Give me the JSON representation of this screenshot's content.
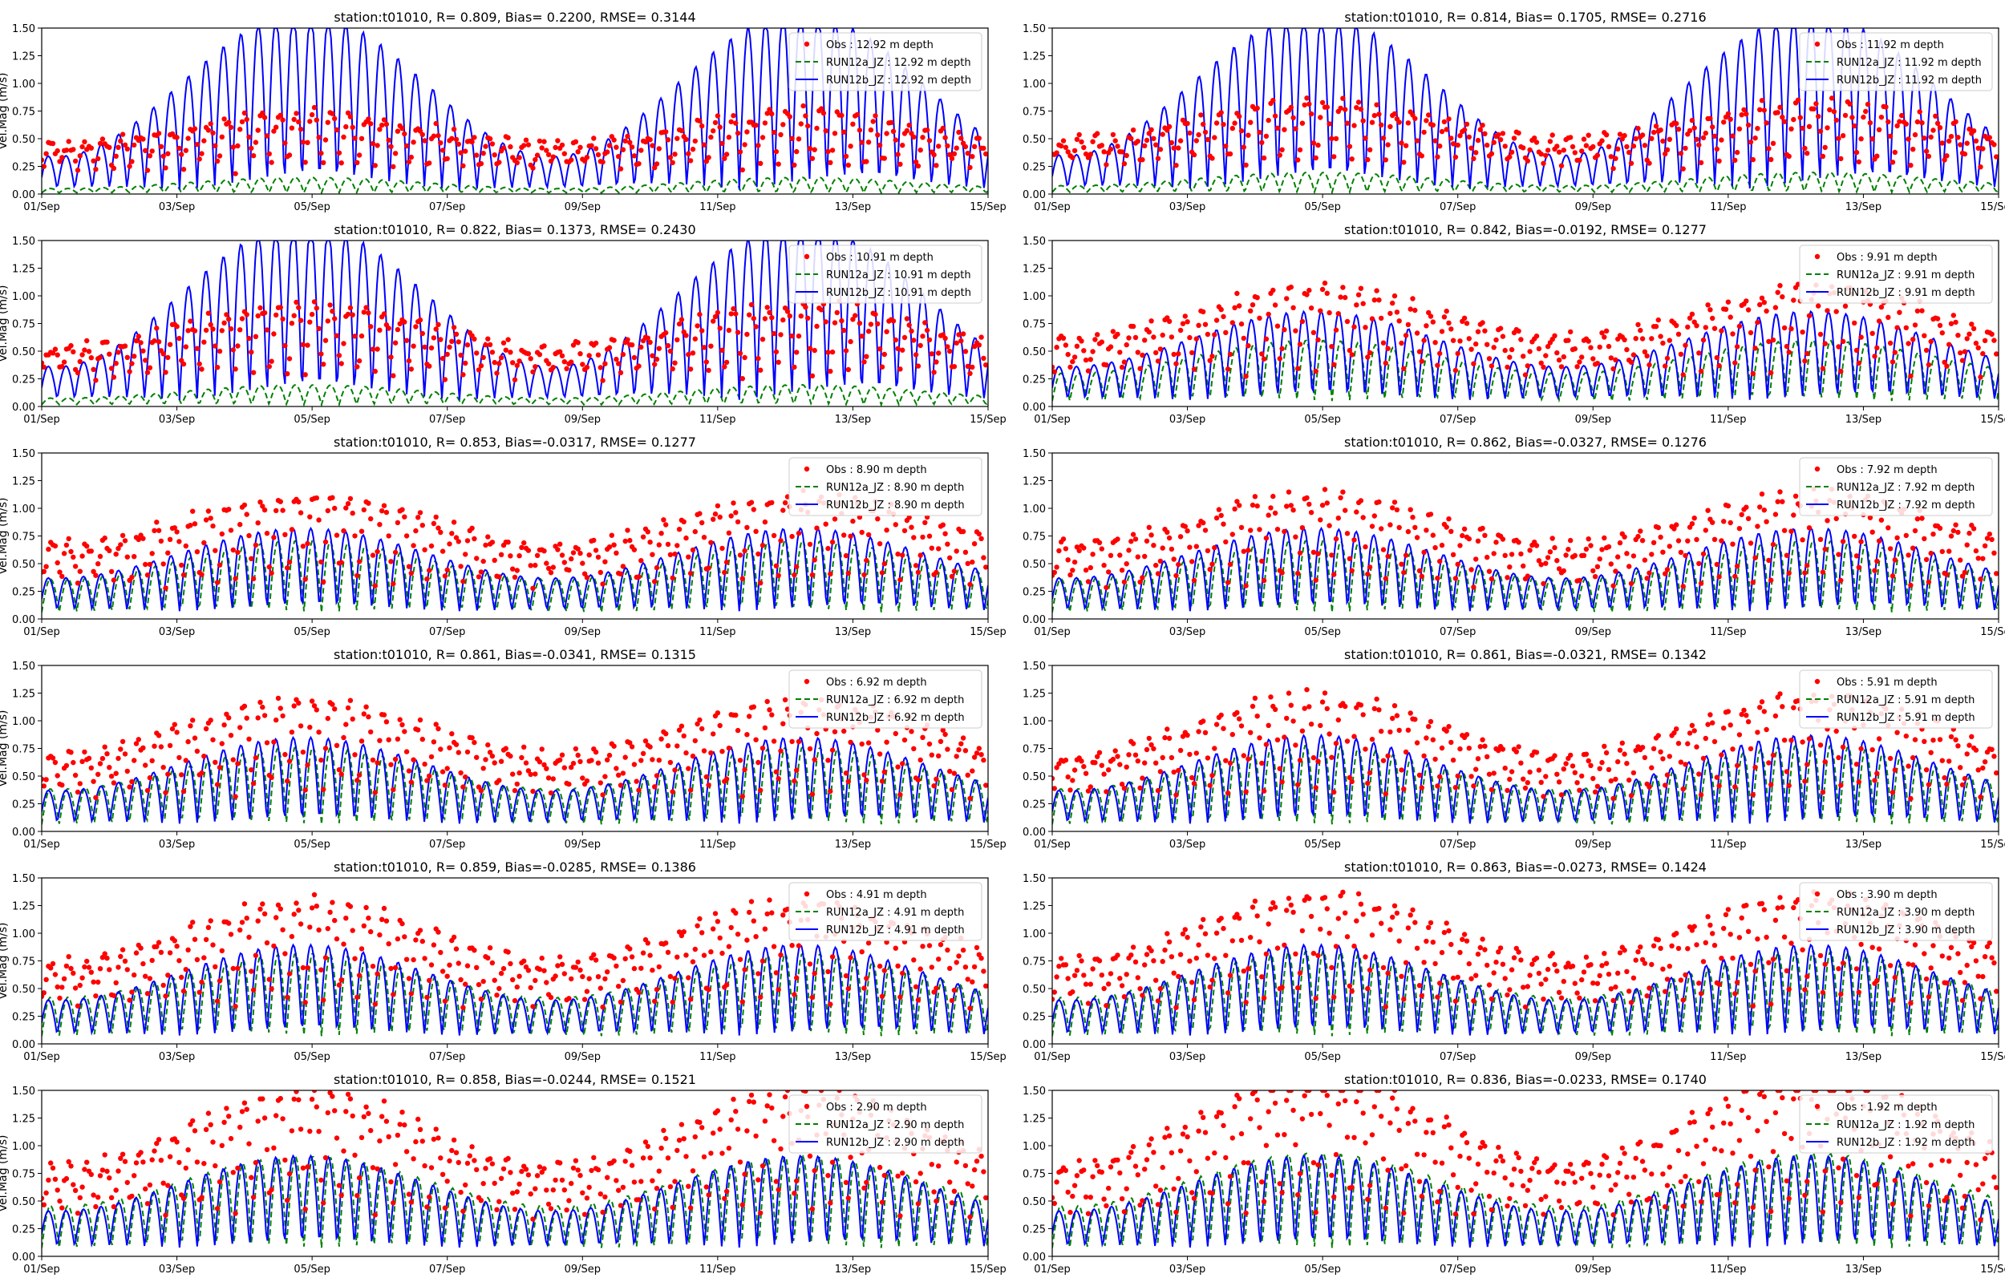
{
  "figure": {
    "layout": "6 rows x 2 columns of time-series panels",
    "colors": {
      "obs": "#ff0000",
      "run12a": "#008000",
      "run12b": "#0000ff",
      "axes": "#000000"
    }
  },
  "chart_data": [
    {
      "type": "line",
      "title": "station:t01010, R= 0.809, Bias= 0.2200, RMSE= 0.3144",
      "xlabel": "",
      "ylabel": "Vel.Mag (m/s)",
      "ylim": [
        0,
        1.5
      ],
      "yticks": [
        "0.00",
        "0.25",
        "0.50",
        "0.75",
        "1.00",
        "1.25",
        "1.50"
      ],
      "xlim_days": [
        0,
        14
      ],
      "xticks": [
        "01/Sep",
        "03/Sep",
        "05/Sep",
        "07/Sep",
        "09/Sep",
        "11/Sep",
        "13/Sep",
        "15/Sep"
      ],
      "legend_position": "top-right",
      "series": [
        {
          "name": "Obs : 12.92 m depth",
          "style": "markers",
          "color": "#ff0000",
          "base": 0.3,
          "amp": 0.2,
          "peak": 0.3
        },
        {
          "name": "RUN12a_JZ : 12.92 m depth",
          "style": "dashed",
          "color": "#008000",
          "base": 0.05,
          "amp": 0.04,
          "peak": 0.1
        },
        {
          "name": "RUN12b_JZ : 12.92 m depth",
          "style": "solid",
          "color": "#0000ff",
          "base": 0.2,
          "amp": 0.3,
          "peak": 1.3
        }
      ],
      "legend_entries": [
        "Obs : 12.92 m depth",
        "RUN12a_JZ : 12.92 m depth",
        "RUN12b_JZ : 12.92 m depth"
      ]
    },
    {
      "type": "line",
      "title": "station:t01010, R= 0.814, Bias= 0.1705, RMSE= 0.2716",
      "xlabel": "",
      "ylabel": "",
      "ylim": [
        0,
        1.5
      ],
      "yticks": [
        "0.00",
        "0.25",
        "0.50",
        "0.75",
        "1.00",
        "1.25",
        "1.50"
      ],
      "xlim_days": [
        0,
        14
      ],
      "xticks": [
        "01/Sep",
        "03/Sep",
        "05/Sep",
        "07/Sep",
        "09/Sep",
        "11/Sep",
        "13/Sep",
        "15/Sep"
      ],
      "legend_position": "top-right",
      "series": [
        {
          "name": "Obs : 11.92 m depth",
          "style": "markers",
          "color": "#ff0000",
          "base": 0.35,
          "amp": 0.2,
          "peak": 0.35
        },
        {
          "name": "RUN12a_JZ : 11.92 m depth",
          "style": "dashed",
          "color": "#008000",
          "base": 0.08,
          "amp": 0.06,
          "peak": 0.12
        },
        {
          "name": "RUN12b_JZ : 11.92 m depth",
          "style": "solid",
          "color": "#0000ff",
          "base": 0.25,
          "amp": 0.3,
          "peak": 1.28
        }
      ],
      "legend_entries": [
        "Obs : 11.92 m depth",
        "RUN12a_JZ : 11.92 m depth",
        "RUN12b_JZ : 11.92 m depth"
      ]
    },
    {
      "type": "line",
      "title": "station:t01010, R= 0.822, Bias= 0.1373, RMSE= 0.2430",
      "xlabel": "",
      "ylabel": "Vel.Mag (m/s)",
      "ylim": [
        0,
        1.5
      ],
      "yticks": [
        "0.00",
        "0.25",
        "0.50",
        "0.75",
        "1.00",
        "1.25",
        "1.50"
      ],
      "xlim_days": [
        0,
        14
      ],
      "xticks": [
        "01/Sep",
        "03/Sep",
        "05/Sep",
        "07/Sep",
        "09/Sep",
        "11/Sep",
        "13/Sep",
        "15/Sep"
      ],
      "legend_position": "top-right",
      "series": [
        {
          "name": "Obs : 10.91 m depth",
          "style": "markers",
          "color": "#ff0000",
          "base": 0.35,
          "amp": 0.25,
          "peak": 0.4
        },
        {
          "name": "RUN12a_JZ : 10.91 m depth",
          "style": "dashed",
          "color": "#008000",
          "base": 0.08,
          "amp": 0.06,
          "peak": 0.12
        },
        {
          "name": "RUN12b_JZ : 10.91 m depth",
          "style": "solid",
          "color": "#0000ff",
          "base": 0.3,
          "amp": 0.3,
          "peak": 1.3
        }
      ],
      "legend_entries": [
        "Obs : 10.91 m depth",
        "RUN12a_JZ : 10.91 m depth",
        "RUN12b_JZ : 10.91 m depth"
      ]
    },
    {
      "type": "line",
      "title": "station:t01010, R= 0.842, Bias=-0.0192, RMSE= 0.1277",
      "xlabel": "",
      "ylabel": "",
      "ylim": [
        0,
        1.5
      ],
      "yticks": [
        "0.00",
        "0.25",
        "0.50",
        "0.75",
        "1.00",
        "1.25",
        "1.50"
      ],
      "xlim_days": [
        0,
        14
      ],
      "xticks": [
        "01/Sep",
        "03/Sep",
        "05/Sep",
        "07/Sep",
        "09/Sep",
        "11/Sep",
        "13/Sep",
        "15/Sep"
      ],
      "legend_position": "top-right",
      "series": [
        {
          "name": "Obs : 9.91 m depth",
          "style": "markers",
          "color": "#ff0000",
          "base": 0.4,
          "amp": 0.3,
          "peak": 0.45
        },
        {
          "name": "RUN12a_JZ : 9.91 m depth",
          "style": "dashed",
          "color": "#008000",
          "base": 0.25,
          "amp": 0.25,
          "peak": 0.3
        },
        {
          "name": "RUN12b_JZ : 9.91 m depth",
          "style": "solid",
          "color": "#0000ff",
          "base": 0.3,
          "amp": 0.3,
          "peak": 0.5
        }
      ],
      "legend_entries": [
        "Obs : 9.91 m depth",
        "RUN12a_JZ : 9.91 m depth",
        "RUN12b_JZ : 9.91 m depth"
      ]
    },
    {
      "type": "line",
      "title": "station:t01010, R= 0.853, Bias=-0.0317, RMSE= 0.1277",
      "xlabel": "",
      "ylabel": "Vel.Mag (m/s)",
      "ylim": [
        0,
        1.5
      ],
      "yticks": [
        "0.00",
        "0.25",
        "0.50",
        "0.75",
        "1.00",
        "1.25",
        "1.50"
      ],
      "xlim_days": [
        0,
        14
      ],
      "xticks": [
        "01/Sep",
        "03/Sep",
        "05/Sep",
        "07/Sep",
        "09/Sep",
        "11/Sep",
        "13/Sep",
        "15/Sep"
      ],
      "legend_position": "top-right",
      "series": [
        {
          "name": "Obs : 8.90 m depth",
          "style": "markers",
          "color": "#ff0000",
          "base": 0.4,
          "amp": 0.35,
          "peak": 0.45
        },
        {
          "name": "RUN12a_JZ : 8.90 m depth",
          "style": "dashed",
          "color": "#008000",
          "base": 0.3,
          "amp": 0.3,
          "peak": 0.35
        },
        {
          "name": "RUN12b_JZ : 8.90 m depth",
          "style": "solid",
          "color": "#0000ff",
          "base": 0.35,
          "amp": 0.3,
          "peak": 0.45
        }
      ],
      "legend_entries": [
        "Obs : 8.90 m depth",
        "RUN12a_JZ : 8.90 m depth",
        "RUN12b_JZ : 8.90 m depth"
      ]
    },
    {
      "type": "line",
      "title": "station:t01010, R= 0.862, Bias=-0.0327, RMSE= 0.1276",
      "xlabel": "",
      "ylabel": "",
      "ylim": [
        0,
        1.5
      ],
      "yticks": [
        "0.00",
        "0.25",
        "0.50",
        "0.75",
        "1.00",
        "1.25",
        "1.50"
      ],
      "xlim_days": [
        0,
        14
      ],
      "xticks": [
        "01/Sep",
        "03/Sep",
        "05/Sep",
        "07/Sep",
        "09/Sep",
        "11/Sep",
        "13/Sep",
        "15/Sep"
      ],
      "legend_position": "top-right",
      "series": [
        {
          "name": "Obs : 7.92 m depth",
          "style": "markers",
          "color": "#ff0000",
          "base": 0.4,
          "amp": 0.35,
          "peak": 0.45
        },
        {
          "name": "RUN12a_JZ : 7.92 m depth",
          "style": "dashed",
          "color": "#008000",
          "base": 0.3,
          "amp": 0.3,
          "peak": 0.35
        },
        {
          "name": "RUN12b_JZ : 7.92 m depth",
          "style": "solid",
          "color": "#0000ff",
          "base": 0.35,
          "amp": 0.3,
          "peak": 0.45
        }
      ],
      "legend_entries": [
        "Obs : 7.92 m depth",
        "RUN12a_JZ : 7.92 m depth",
        "RUN12b_JZ : 7.92 m depth"
      ]
    },
    {
      "type": "line",
      "title": "station:t01010, R= 0.861, Bias=-0.0341, RMSE= 0.1315",
      "xlabel": "",
      "ylabel": "Vel.Mag (m/s)",
      "ylim": [
        0,
        1.5
      ],
      "yticks": [
        "0.00",
        "0.25",
        "0.50",
        "0.75",
        "1.00",
        "1.25",
        "1.50"
      ],
      "xlim_days": [
        0,
        14
      ],
      "xticks": [
        "01/Sep",
        "03/Sep",
        "05/Sep",
        "07/Sep",
        "09/Sep",
        "11/Sep",
        "13/Sep",
        "15/Sep"
      ],
      "legend_position": "top-right",
      "series": [
        {
          "name": "Obs : 6.92 m depth",
          "style": "markers",
          "color": "#ff0000",
          "base": 0.42,
          "amp": 0.35,
          "peak": 0.5
        },
        {
          "name": "RUN12a_JZ : 6.92 m depth",
          "style": "dashed",
          "color": "#008000",
          "base": 0.32,
          "amp": 0.32,
          "peak": 0.38
        },
        {
          "name": "RUN12b_JZ : 6.92 m depth",
          "style": "solid",
          "color": "#0000ff",
          "base": 0.35,
          "amp": 0.3,
          "peak": 0.48
        }
      ],
      "legend_entries": [
        "Obs : 6.92 m depth",
        "RUN12a_JZ : 6.92 m depth",
        "RUN12b_JZ : 6.92 m depth"
      ]
    },
    {
      "type": "line",
      "title": "station:t01010, R= 0.861, Bias=-0.0321, RMSE= 0.1342",
      "xlabel": "",
      "ylabel": "",
      "ylim": [
        0,
        1.5
      ],
      "yticks": [
        "0.00",
        "0.25",
        "0.50",
        "0.75",
        "1.00",
        "1.25",
        "1.50"
      ],
      "xlim_days": [
        0,
        14
      ],
      "xticks": [
        "01/Sep",
        "03/Sep",
        "05/Sep",
        "07/Sep",
        "09/Sep",
        "11/Sep",
        "13/Sep",
        "15/Sep"
      ],
      "legend_position": "top-right",
      "series": [
        {
          "name": "Obs : 5.91 m depth",
          "style": "markers",
          "color": "#ff0000",
          "base": 0.42,
          "amp": 0.35,
          "peak": 0.55
        },
        {
          "name": "RUN12a_JZ : 5.91 m depth",
          "style": "dashed",
          "color": "#008000",
          "base": 0.32,
          "amp": 0.32,
          "peak": 0.4
        },
        {
          "name": "RUN12b_JZ : 5.91 m depth",
          "style": "solid",
          "color": "#0000ff",
          "base": 0.35,
          "amp": 0.3,
          "peak": 0.5
        }
      ],
      "legend_entries": [
        "Obs : 5.91 m depth",
        "RUN12a_JZ : 5.91 m depth",
        "RUN12b_JZ : 5.91 m depth"
      ]
    },
    {
      "type": "line",
      "title": "station:t01010, R= 0.859, Bias=-0.0285, RMSE= 0.1386",
      "xlabel": "",
      "ylabel": "Vel.Mag (m/s)",
      "ylim": [
        0,
        1.5
      ],
      "yticks": [
        "0.00",
        "0.25",
        "0.50",
        "0.75",
        "1.00",
        "1.25",
        "1.50"
      ],
      "xlim_days": [
        0,
        14
      ],
      "xticks": [
        "01/Sep",
        "03/Sep",
        "05/Sep",
        "07/Sep",
        "09/Sep",
        "11/Sep",
        "13/Sep",
        "15/Sep"
      ],
      "legend_position": "top-right",
      "series": [
        {
          "name": "Obs : 4.91 m depth",
          "style": "markers",
          "color": "#ff0000",
          "base": 0.45,
          "amp": 0.38,
          "peak": 0.55
        },
        {
          "name": "RUN12a_JZ : 4.91 m depth",
          "style": "dashed",
          "color": "#008000",
          "base": 0.35,
          "amp": 0.35,
          "peak": 0.4
        },
        {
          "name": "RUN12b_JZ : 4.91 m depth",
          "style": "solid",
          "color": "#0000ff",
          "base": 0.38,
          "amp": 0.32,
          "peak": 0.5
        }
      ],
      "legend_entries": [
        "Obs : 4.91 m depth",
        "RUN12a_JZ : 4.91 m depth",
        "RUN12b_JZ : 4.91 m depth"
      ]
    },
    {
      "type": "line",
      "title": "station:t01010, R= 0.863, Bias=-0.0273, RMSE= 0.1424",
      "xlabel": "",
      "ylabel": "",
      "ylim": [
        0,
        1.5
      ],
      "yticks": [
        "0.00",
        "0.25",
        "0.50",
        "0.75",
        "1.00",
        "1.25",
        "1.50"
      ],
      "xlim_days": [
        0,
        14
      ],
      "xticks": [
        "01/Sep",
        "03/Sep",
        "05/Sep",
        "07/Sep",
        "09/Sep",
        "11/Sep",
        "13/Sep",
        "15/Sep"
      ],
      "legend_position": "top-right",
      "series": [
        {
          "name": "Obs : 3.90 m depth",
          "style": "markers",
          "color": "#ff0000",
          "base": 0.45,
          "amp": 0.4,
          "peak": 0.6
        },
        {
          "name": "RUN12a_JZ : 3.90 m depth",
          "style": "dashed",
          "color": "#008000",
          "base": 0.35,
          "amp": 0.35,
          "peak": 0.42
        },
        {
          "name": "RUN12b_JZ : 3.90 m depth",
          "style": "solid",
          "color": "#0000ff",
          "base": 0.38,
          "amp": 0.32,
          "peak": 0.5
        }
      ],
      "legend_entries": [
        "Obs : 3.90 m depth",
        "RUN12a_JZ : 3.90 m depth",
        "RUN12b_JZ : 3.90 m depth"
      ]
    },
    {
      "type": "line",
      "title": "station:t01010, R= 0.858, Bias=-0.0244, RMSE= 0.1521",
      "xlabel": "",
      "ylabel": "Vel.Mag (m/s)",
      "ylim": [
        0,
        1.5
      ],
      "yticks": [
        "0.00",
        "0.25",
        "0.50",
        "0.75",
        "1.00",
        "1.25",
        "1.50"
      ],
      "xlim_days": [
        0,
        14
      ],
      "xticks": [
        "01/Sep",
        "03/Sep",
        "05/Sep",
        "07/Sep",
        "09/Sep",
        "11/Sep",
        "13/Sep",
        "15/Sep"
      ],
      "legend_position": "top-right",
      "series": [
        {
          "name": "Obs : 2.90 m depth",
          "style": "markers",
          "color": "#ff0000",
          "base": 0.48,
          "amp": 0.42,
          "peak": 0.7
        },
        {
          "name": "RUN12a_JZ : 2.90 m depth",
          "style": "dashed",
          "color": "#008000",
          "base": 0.38,
          "amp": 0.38,
          "peak": 0.45
        },
        {
          "name": "RUN12b_JZ : 2.90 m depth",
          "style": "solid",
          "color": "#0000ff",
          "base": 0.4,
          "amp": 0.33,
          "peak": 0.5
        }
      ],
      "legend_entries": [
        "Obs : 2.90 m depth",
        "RUN12a_JZ : 2.90 m depth",
        "RUN12b_JZ : 2.90 m depth"
      ]
    },
    {
      "type": "line",
      "title": "station:t01010, R= 0.836, Bias=-0.0233, RMSE= 0.1740",
      "xlabel": "",
      "ylabel": "",
      "ylim": [
        0,
        1.5
      ],
      "yticks": [
        "0.00",
        "0.25",
        "0.50",
        "0.75",
        "1.00",
        "1.25",
        "1.50"
      ],
      "xlim_days": [
        0,
        14
      ],
      "xticks": [
        "01/Sep",
        "03/Sep",
        "05/Sep",
        "07/Sep",
        "09/Sep",
        "11/Sep",
        "13/Sep",
        "15/Sep"
      ],
      "legend_position": "top-right",
      "series": [
        {
          "name": "Obs : 1.92 m depth",
          "style": "markers",
          "color": "#ff0000",
          "base": 0.48,
          "amp": 0.45,
          "peak": 0.8
        },
        {
          "name": "RUN12a_JZ : 1.92 m depth",
          "style": "dashed",
          "color": "#008000",
          "base": 0.38,
          "amp": 0.38,
          "peak": 0.48
        },
        {
          "name": "RUN12b_JZ : 1.92 m depth",
          "style": "solid",
          "color": "#0000ff",
          "base": 0.4,
          "amp": 0.33,
          "peak": 0.5
        }
      ],
      "legend_entries": [
        "Obs : 1.92 m depth",
        "RUN12a_JZ : 1.92 m depth",
        "RUN12b_JZ : 1.92 m depth"
      ]
    }
  ]
}
